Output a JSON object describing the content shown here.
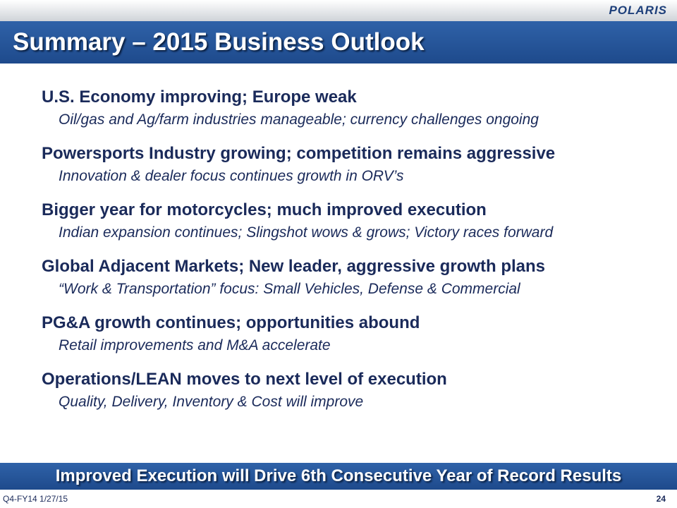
{
  "header": {
    "logo": "POLARIS",
    "title": "Summary – 2015 Business Outlook"
  },
  "items": [
    {
      "heading": "U.S. Economy improving; Europe weak",
      "detail": "Oil/gas and Ag/farm industries manageable; currency challenges ongoing"
    },
    {
      "heading": "Powersports Industry growing; competition remains aggressive",
      "detail": "Innovation & dealer focus continues growth in ORV’s"
    },
    {
      "heading": "Bigger year for motorcycles; much improved execution",
      "detail": "Indian expansion continues; Slingshot wows & grows; Victory races forward"
    },
    {
      "heading": "Global Adjacent Markets; New leader, aggressive growth plans",
      "detail": "“Work & Transportation” focus: Small Vehicles, Defense & Commercial"
    },
    {
      "heading": "PG&A growth continues; opportunities abound",
      "detail": "Retail improvements and M&A accelerate"
    },
    {
      "heading": "Operations/LEAN moves to next level of execution",
      "detail": "Quality, Delivery, Inventory & Cost will improve"
    }
  ],
  "banner": "Improved Execution will Drive 6th Consecutive Year of Record Results",
  "footer": {
    "left": "Q4-FY14 1/27/15",
    "page": "24"
  }
}
